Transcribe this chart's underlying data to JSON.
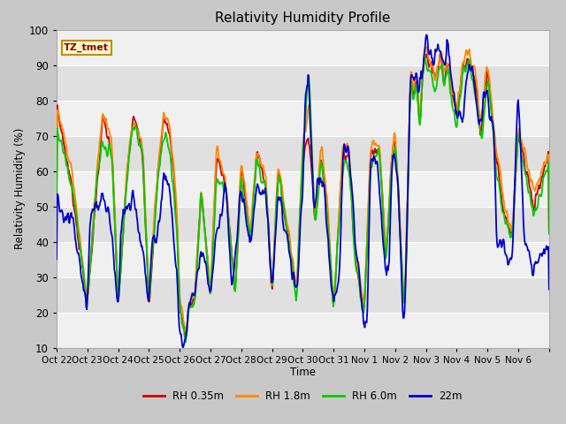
{
  "title": "Relativity Humidity Profile",
  "xlabel": "Time",
  "ylabel": "Relativity Humidity (%)",
  "ylim": [
    10,
    100
  ],
  "yticks": [
    10,
    20,
    30,
    40,
    50,
    60,
    70,
    80,
    90,
    100
  ],
  "colors": {
    "RH 0.35m": "#cc0000",
    "RH 1.8m": "#ff8800",
    "RH 6.0m": "#00cc00",
    "22m": "#0000cc"
  },
  "legend_labels": [
    "RH 0.35m",
    "RH 1.8m",
    "RH 6.0m",
    "22m"
  ],
  "annotation_text": "TZ_tmet",
  "xtick_labels": [
    "Oct 22",
    "Oct 23",
    "Oct 24",
    "Oct 25",
    "Oct 26",
    "Oct 27",
    "Oct 28",
    "Oct 29",
    "Oct 30",
    "Oct 31",
    "Nov 1",
    "Nov 2",
    "Nov 3",
    "Nov 4",
    "Nov 5",
    "Nov 6"
  ],
  "n_days": 16,
  "points_per_day": 48,
  "band_colors": [
    "#f0f0f0",
    "#e0e0e0"
  ],
  "fig_bg": "#c8c8c8",
  "plot_bg": "#e8e8e8"
}
